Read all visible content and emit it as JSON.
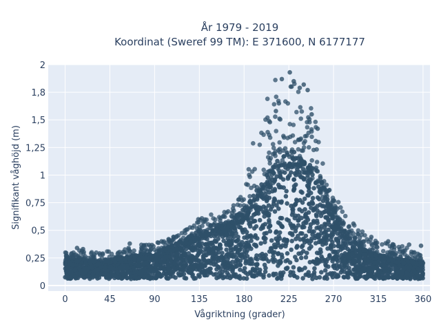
{
  "chart_data": {
    "type": "scatter",
    "title_line1": "År 1979 - 2019",
    "title_line2": "Koordinat (Sweref 99 TM): E 371600, N 6177177",
    "xlabel": "Vågriktning (grader)",
    "ylabel": "Signifikant våghöjd (m)",
    "xlim": [
      -17,
      367
    ],
    "ylim": [
      -0.05,
      2.0
    ],
    "x_ticks": [
      0,
      45,
      90,
      135,
      180,
      225,
      270,
      315,
      360
    ],
    "x_tick_labels": [
      "0",
      "45",
      "90",
      "135",
      "180",
      "225",
      "270",
      "315",
      "360"
    ],
    "y_ticks": [
      0,
      0.25,
      0.5,
      0.75,
      1,
      1.25,
      1.5,
      1.75,
      2
    ],
    "y_tick_labels": [
      "0",
      "0,25",
      "0,5",
      "0,75",
      "1",
      "1,25",
      "1,5",
      "1,8",
      "2"
    ],
    "grid": true,
    "marker_color": "#2f5069",
    "background_color": "#e5ecf6",
    "envelope": {
      "direction": [
        0,
        15,
        30,
        45,
        60,
        75,
        90,
        105,
        120,
        135,
        150,
        165,
        180,
        195,
        210,
        225,
        240,
        255,
        270,
        285,
        300,
        315,
        330,
        345,
        360
      ],
      "dense_upper": [
        0.22,
        0.24,
        0.22,
        0.24,
        0.26,
        0.28,
        0.3,
        0.36,
        0.42,
        0.5,
        0.56,
        0.58,
        0.7,
        0.9,
        1.1,
        1.22,
        1.2,
        1.02,
        0.7,
        0.45,
        0.33,
        0.28,
        0.25,
        0.23,
        0.22
      ],
      "dense_lower": [
        0.06,
        0.06,
        0.06,
        0.06,
        0.06,
        0.06,
        0.06,
        0.06,
        0.06,
        0.06,
        0.06,
        0.06,
        0.06,
        0.06,
        0.06,
        0.06,
        0.06,
        0.06,
        0.06,
        0.06,
        0.06,
        0.06,
        0.06,
        0.06,
        0.06
      ],
      "sparse_upper": [
        0.3,
        0.33,
        0.3,
        0.31,
        0.33,
        0.37,
        0.38,
        0.43,
        0.5,
        0.6,
        0.66,
        0.68,
        0.85,
        1.58,
        1.87,
        1.93,
        1.82,
        1.4,
        0.85,
        0.6,
        0.48,
        0.4,
        0.38,
        0.35,
        0.3
      ]
    },
    "notable_points": [
      {
        "x": 226,
        "y": 1.93
      },
      {
        "x": 218,
        "y": 1.87
      },
      {
        "x": 230,
        "y": 1.85
      },
      {
        "x": 240,
        "y": 1.82
      },
      {
        "x": 236,
        "y": 1.79
      },
      {
        "x": 244,
        "y": 1.77
      },
      {
        "x": 215,
        "y": 1.65
      },
      {
        "x": 212,
        "y": 1.58
      },
      {
        "x": 248,
        "y": 1.55
      },
      {
        "x": 206,
        "y": 1.48
      },
      {
        "x": 254,
        "y": 1.42
      },
      {
        "x": 12,
        "y": 0.34
      },
      {
        "x": 18,
        "y": 0.33
      },
      {
        "x": 65,
        "y": 0.38
      },
      {
        "x": 97,
        "y": 0.4
      },
      {
        "x": 134,
        "y": 0.6
      },
      {
        "x": 308,
        "y": 0.44
      },
      {
        "x": 325,
        "y": 0.4
      },
      {
        "x": 346,
        "y": 0.37
      },
      {
        "x": 358,
        "y": 0.36
      },
      {
        "x": 290,
        "y": 0.56
      },
      {
        "x": 168,
        "y": 0.66
      }
    ]
  }
}
